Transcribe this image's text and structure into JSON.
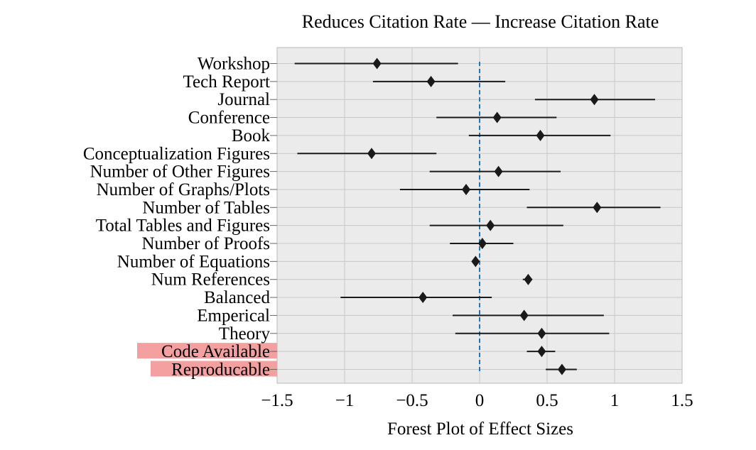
{
  "chart_data": {
    "type": "forest",
    "title": "Reduces Citation Rate — Increase Citation Rate",
    "xlabel": "Forest Plot of Effect Sizes",
    "ylabel": "",
    "xlim": [
      -1.5,
      1.5
    ],
    "xticks": [
      -1.5,
      -1,
      -0.5,
      0,
      0.5,
      1,
      1.5
    ],
    "xtick_labels": [
      "−1.5",
      "−1",
      "−0.5",
      "0",
      "0.5",
      "1",
      "1.5"
    ],
    "reference_line": 0,
    "grid": true,
    "colors": {
      "background": "#ebebeb",
      "grid": "#c8c8c8",
      "marker": "#1a1a1a",
      "reference_line": "#1f77b4",
      "highlight": "#f4a0a0"
    },
    "rows": [
      {
        "label": "Workshop",
        "estimate": -0.76,
        "lower": -1.37,
        "upper": -0.16,
        "highlight": false
      },
      {
        "label": "Tech Report",
        "estimate": -0.36,
        "lower": -0.79,
        "upper": 0.19,
        "highlight": false
      },
      {
        "label": "Journal",
        "estimate": 0.85,
        "lower": 0.41,
        "upper": 1.3,
        "highlight": false
      },
      {
        "label": "Conference",
        "estimate": 0.13,
        "lower": -0.32,
        "upper": 0.57,
        "highlight": false
      },
      {
        "label": "Book",
        "estimate": 0.45,
        "lower": -0.08,
        "upper": 0.97,
        "highlight": false
      },
      {
        "label": "Conceptualization Figures",
        "estimate": -0.8,
        "lower": -1.35,
        "upper": -0.32,
        "highlight": false
      },
      {
        "label": "Number of Other Figures",
        "estimate": 0.14,
        "lower": -0.37,
        "upper": 0.6,
        "highlight": false
      },
      {
        "label": "Number of Graphs/Plots",
        "estimate": -0.1,
        "lower": -0.59,
        "upper": 0.37,
        "highlight": false
      },
      {
        "label": "Number of Tables",
        "estimate": 0.87,
        "lower": 0.35,
        "upper": 1.34,
        "highlight": false
      },
      {
        "label": "Total Tables and Figures",
        "estimate": 0.08,
        "lower": -0.37,
        "upper": 0.62,
        "highlight": false
      },
      {
        "label": "Number of Proofs",
        "estimate": 0.02,
        "lower": -0.22,
        "upper": 0.25,
        "highlight": false
      },
      {
        "label": "Number of Equations",
        "estimate": -0.03,
        "lower": -0.03,
        "upper": -0.03,
        "highlight": false
      },
      {
        "label": "Num References",
        "estimate": 0.36,
        "lower": 0.32,
        "upper": 0.39,
        "highlight": false
      },
      {
        "label": "Balanced",
        "estimate": -0.42,
        "lower": -1.03,
        "upper": 0.09,
        "highlight": false
      },
      {
        "label": "Emperical",
        "estimate": 0.33,
        "lower": -0.2,
        "upper": 0.92,
        "highlight": false
      },
      {
        "label": "Theory",
        "estimate": 0.46,
        "lower": -0.18,
        "upper": 0.96,
        "highlight": false
      },
      {
        "label": "Code Available",
        "estimate": 0.46,
        "lower": 0.35,
        "upper": 0.56,
        "highlight": true
      },
      {
        "label": "Reproducable",
        "estimate": 0.61,
        "lower": 0.49,
        "upper": 0.72,
        "highlight": true
      }
    ]
  }
}
